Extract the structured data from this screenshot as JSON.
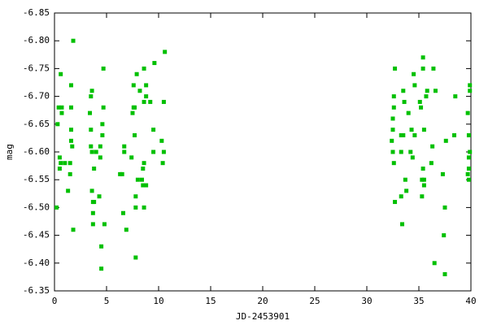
{
  "chart_data": {
    "type": "scatter",
    "xlabel": "JD-2453901",
    "ylabel": "mag",
    "color": "#00c000",
    "xlim": [
      0,
      40
    ],
    "xticks": [
      0,
      5,
      10,
      15,
      20,
      25,
      30,
      35,
      40
    ],
    "ylim": [
      -6.35,
      -6.85
    ],
    "yticks": [
      -6.85,
      {
        "value": -6.8,
        "label": "-6.80"
      },
      -6.75,
      {
        "value": -6.7,
        "label": "-6.70"
      },
      -6.65,
      {
        "value": -6.6,
        "label": "-6.60"
      },
      -6.55,
      {
        "value": -6.5,
        "label": "-6.50"
      },
      -6.45,
      {
        "value": -6.4,
        "label": "-6.40"
      },
      -6.35
    ],
    "x": [
      0.2,
      0.3,
      0.4,
      0.5,
      0.5,
      0.6,
      0.7,
      0.7,
      0.6,
      1.0,
      1.3,
      1.5,
      1.5,
      1.6,
      1.6,
      1.6,
      1.6,
      1.7,
      1.8,
      1.8,
      3.4,
      3.5,
      3.5,
      3.5,
      3.6,
      3.6,
      3.7,
      3.7,
      3.7,
      3.8,
      3.6,
      3.8,
      4.0,
      4.3,
      4.4,
      4.4,
      4.5,
      4.5,
      4.6,
      4.6,
      4.7,
      4.7,
      4.8,
      6.3,
      6.5,
      6.6,
      6.7,
      6.7,
      6.9,
      7.4,
      7.5,
      7.6,
      7.6,
      7.7,
      7.7,
      7.8,
      7.8,
      7.8,
      7.9,
      8.0,
      8.2,
      8.4,
      8.5,
      8.5,
      8.6,
      8.6,
      8.6,
      8.6,
      8.8,
      8.8,
      8.8,
      9.2,
      9.5,
      9.5,
      9.6,
      10.3,
      10.4,
      10.5,
      10.5,
      10.6,
      32.4,
      32.5,
      32.5,
      32.5,
      32.6,
      32.6,
      32.6,
      32.7,
      32.7,
      33.3,
      33.3,
      33.3,
      33.4,
      33.5,
      33.5,
      33.6,
      33.7,
      33.8,
      34.0,
      34.2,
      34.3,
      34.4,
      34.5,
      34.6,
      34.6,
      35.1,
      35.2,
      35.3,
      35.3,
      35.4,
      35.4,
      35.4,
      35.5,
      35.5,
      35.5,
      35.7,
      35.8,
      36.2,
      36.3,
      36.4,
      36.5,
      36.6,
      37.3,
      37.4,
      37.5,
      37.5,
      37.6,
      38.4,
      38.5,
      39.7,
      39.7,
      39.8,
      39.8,
      39.8,
      39.8,
      39.9,
      39.9,
      39.9
    ],
    "values": [
      -6.5,
      -6.65,
      -6.68,
      -6.59,
      -6.57,
      -6.58,
      -6.67,
      -6.68,
      -6.74,
      -6.58,
      -6.53,
      -6.56,
      -6.58,
      -6.68,
      -6.72,
      -6.64,
      -6.62,
      -6.61,
      -6.8,
      -6.46,
      -6.67,
      -6.7,
      -6.64,
      -6.61,
      -6.6,
      -6.53,
      -6.49,
      -6.51,
      -6.47,
      -6.51,
      -6.71,
      -6.57,
      -6.6,
      -6.52,
      -6.61,
      -6.59,
      -6.43,
      -6.39,
      -6.65,
      -6.63,
      -6.68,
      -6.75,
      -6.47,
      -6.56,
      -6.56,
      -6.49,
      -6.61,
      -6.6,
      -6.46,
      -6.59,
      -6.67,
      -6.68,
      -6.72,
      -6.68,
      -6.63,
      -6.5,
      -6.52,
      -6.41,
      -6.74,
      -6.55,
      -6.71,
      -6.55,
      -6.54,
      -6.57,
      -6.58,
      -6.69,
      -6.75,
      -6.5,
      -6.72,
      -6.54,
      -6.7,
      -6.69,
      -6.64,
      -6.6,
      -6.76,
      -6.62,
      -6.58,
      -6.6,
      -6.69,
      -6.78,
      -6.62,
      -6.6,
      -6.66,
      -6.64,
      -6.68,
      -6.7,
      -6.58,
      -6.51,
      -6.75,
      -6.63,
      -6.6,
      -6.52,
      -6.47,
      -6.71,
      -6.63,
      -6.69,
      -6.55,
      -6.53,
      -6.67,
      -6.6,
      -6.64,
      -6.59,
      -6.74,
      -6.72,
      -6.63,
      -6.69,
      -6.68,
      -6.52,
      -6.55,
      -6.57,
      -6.77,
      -6.75,
      -6.54,
      -6.55,
      -6.64,
      -6.7,
      -6.71,
      -6.58,
      -6.61,
      -6.75,
      -6.4,
      -6.71,
      -6.56,
      -6.45,
      -6.38,
      -6.5,
      -6.62,
      -6.63,
      -6.7,
      -6.67,
      -6.56,
      -6.55,
      -6.57,
      -6.59,
      -6.63,
      -6.6,
      -6.71,
      -6.72
    ]
  }
}
